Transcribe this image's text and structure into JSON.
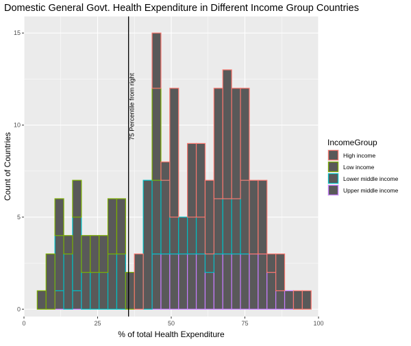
{
  "chart_data": {
    "type": "histogram",
    "title": "Domestic General Govt. Health Expenditure in Different Income Group Countries",
    "xlabel": "% of total Health Expenditure",
    "ylabel": "Count of Countries",
    "xlim": [
      0,
      100
    ],
    "ylim": [
      -0.4,
      15.9
    ],
    "x_ticks": [
      0,
      25,
      50,
      75,
      100
    ],
    "y_ticks": [
      0,
      5,
      10,
      15
    ],
    "grid": true,
    "bar_fill": "#595959",
    "bins": {
      "starts": [
        4.5,
        7.5,
        10.5,
        13.5,
        16.5,
        19.5,
        22.5,
        25.5,
        28.5,
        31.5,
        34.5,
        37.5,
        40.5,
        43.5,
        46.5,
        49.5,
        52.5,
        55.5,
        58.5,
        61.5,
        64.5,
        67.5,
        70.5,
        73.5,
        76.5,
        79.5,
        82.5,
        85.5,
        88.5,
        91.5,
        94.5
      ],
      "width": 3
    },
    "series": [
      {
        "name": "Upper middle income",
        "color": "#C77CFF",
        "values": [
          0,
          0,
          1,
          0,
          1,
          0,
          0,
          0,
          0,
          0,
          0,
          0,
          0,
          3,
          3,
          3,
          3,
          3,
          3,
          2,
          3,
          3,
          3,
          3,
          3,
          3,
          2,
          1,
          1,
          0,
          0
        ]
      },
      {
        "name": "Lower middle income",
        "color": "#00BFC4",
        "values": [
          0,
          0,
          3,
          3,
          4,
          2,
          2,
          2,
          3,
          3,
          0,
          0,
          7,
          4,
          4,
          2,
          2,
          2,
          2,
          1,
          3,
          3,
          3,
          4,
          0,
          0,
          0,
          0,
          0,
          0,
          0
        ]
      },
      {
        "name": "Low income",
        "color": "#7CAE00",
        "values": [
          1,
          3,
          2,
          1,
          2,
          2,
          2,
          2,
          3,
          3,
          2,
          0,
          0,
          5,
          0,
          0,
          0,
          0,
          0,
          0,
          0,
          0,
          0,
          0,
          0,
          0,
          0,
          0,
          0,
          0,
          0
        ]
      },
      {
        "name": "High income",
        "color": "#F8766D",
        "values": [
          0,
          0,
          0,
          0,
          0,
          0,
          0,
          0,
          0,
          0,
          0,
          3,
          0,
          3,
          1,
          7,
          0,
          4,
          4,
          4,
          6,
          7,
          6,
          5,
          4,
          4,
          1,
          2,
          0,
          1,
          1
        ]
      }
    ],
    "vline": {
      "x": 35.5,
      "label": "75 Percentile from right",
      "color": "#000000"
    },
    "legend": {
      "title": "IncomeGroup",
      "position": "right",
      "items": [
        "High income",
        "Low income",
        "Lower middle income",
        "Upper middle income"
      ]
    }
  }
}
